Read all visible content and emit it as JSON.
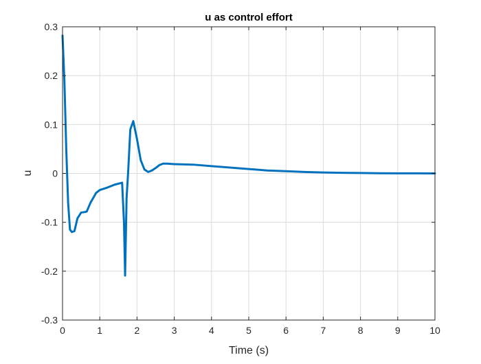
{
  "chart_data": {
    "type": "line",
    "title": "u as control effort",
    "xlabel": "Time (s)",
    "ylabel": "u",
    "xlim": [
      0,
      10
    ],
    "ylim": [
      -0.3,
      0.3
    ],
    "xticks": [
      0,
      1,
      2,
      3,
      4,
      5,
      6,
      7,
      8,
      9,
      10
    ],
    "yticks": [
      -0.3,
      -0.2,
      -0.1,
      0,
      0.1,
      0.2,
      0.3
    ],
    "xtick_labels": [
      "0",
      "1",
      "2",
      "3",
      "4",
      "5",
      "6",
      "7",
      "8",
      "9",
      "10"
    ],
    "ytick_labels": [
      "-0.3",
      "-0.2",
      "-0.1",
      "0",
      "0.1",
      "0.2",
      "0.3"
    ],
    "grid": true,
    "legend": "none",
    "series": [
      {
        "color": "#0072bd",
        "x": [
          0,
          0.05,
          0.1,
          0.15,
          0.2,
          0.25,
          0.32,
          0.4,
          0.5,
          0.6,
          0.65,
          0.75,
          0.9,
          1.0,
          1.2,
          1.4,
          1.6,
          1.65,
          1.68,
          1.72,
          1.76,
          1.82,
          1.9,
          2.0,
          2.1,
          2.2,
          2.3,
          2.4,
          2.5,
          2.6,
          2.7,
          2.8,
          3.0,
          3.5,
          4.0,
          4.5,
          5.0,
          5.5,
          6.0,
          6.5,
          7.0,
          7.5,
          8.0,
          8.5,
          9.0,
          9.5,
          10.0
        ],
        "y": [
          0.282,
          0.19,
          0.05,
          -0.06,
          -0.115,
          -0.12,
          -0.118,
          -0.092,
          -0.08,
          -0.079,
          -0.078,
          -0.06,
          -0.04,
          -0.034,
          -0.029,
          -0.023,
          -0.019,
          -0.1,
          -0.209,
          -0.05,
          0.0,
          0.09,
          0.107,
          0.07,
          0.027,
          0.008,
          0.003,
          0.006,
          0.011,
          0.017,
          0.02,
          0.02,
          0.019,
          0.018,
          0.015,
          0.012,
          0.009,
          0.006,
          0.0045,
          0.003,
          0.002,
          0.0012,
          0.0008,
          0.0004,
          0.0002,
          0.0001,
          0.0
        ]
      }
    ]
  }
}
